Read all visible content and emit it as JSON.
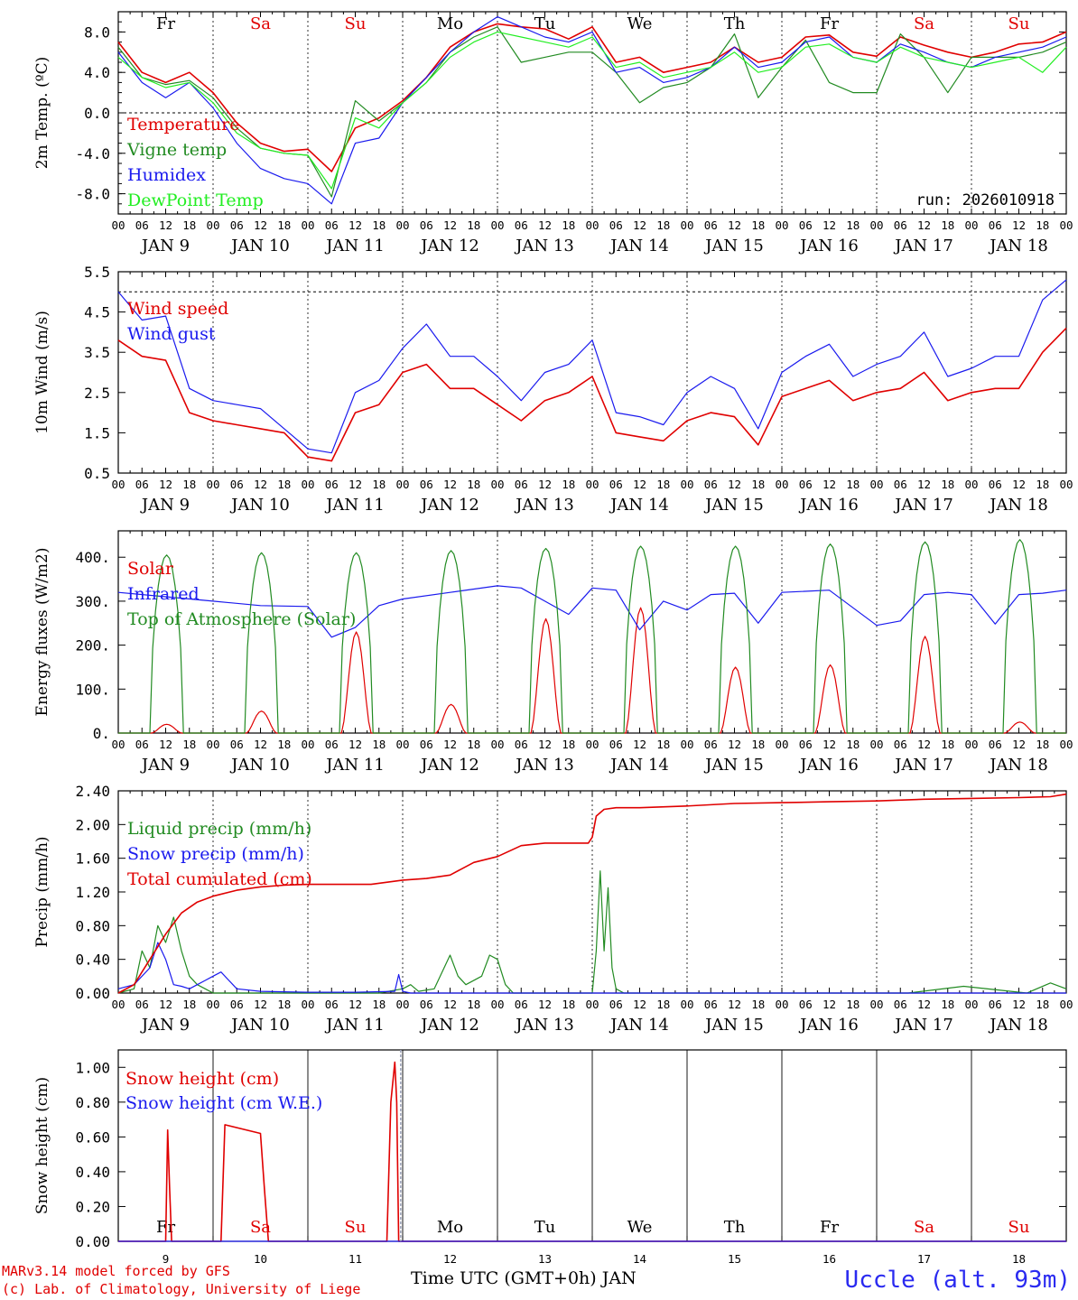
{
  "page": {
    "credit_line1": "MARv3.14 model forced by GFS",
    "credit_line2": "(c) Lab. of Climatology, University of Liege",
    "station": "Uccle (alt. 93m)",
    "xaxis_title": "Time UTC (GMT+0h) JAN",
    "run_label": "run: 2026010918"
  },
  "colors": {
    "red": "#e00000",
    "green": "#228b22",
    "blue": "#1a1aee",
    "lightgreen": "#22ee22",
    "weekday": "#000000",
    "weekend": "#e00000"
  },
  "days": {
    "weekday_letters": [
      "Fr",
      "Sa",
      "Su",
      "Mo",
      "Tu",
      "We",
      "Th",
      "Fr",
      "Sa",
      "Su"
    ],
    "weekend": [
      false,
      true,
      true,
      false,
      false,
      false,
      false,
      false,
      true,
      true
    ],
    "jan_labels": [
      "JAN  9",
      "JAN 10",
      "JAN 11",
      "JAN 12",
      "JAN 13",
      "JAN 14",
      "JAN 15",
      "JAN 16",
      "JAN 17",
      "JAN 18"
    ],
    "day_numbers": [
      "9",
      "10",
      "11",
      "12",
      "13",
      "14",
      "15",
      "16",
      "17",
      "18"
    ],
    "hour_ticks": [
      "00",
      "06",
      "12",
      "18"
    ],
    "final_tick": "00"
  },
  "chart_data": [
    {
      "type": "line",
      "id": "temp",
      "ylabel": "2m Temp. (ºC)",
      "ylim": [
        -10,
        10
      ],
      "ticks": [
        -8.0,
        -4.0,
        0.0,
        4.0,
        8.0
      ],
      "tick_labels": [
        "-8.0",
        "-4.0",
        "0.0",
        "4.0",
        "8.0"
      ],
      "x_unit": "hours since JAN 9 00 UTC",
      "x": [
        0,
        6,
        12,
        18,
        24,
        30,
        36,
        42,
        48,
        54,
        60,
        66,
        72,
        78,
        84,
        90,
        96,
        102,
        108,
        114,
        120,
        126,
        132,
        138,
        144,
        150,
        156,
        162,
        168,
        174,
        180,
        186,
        192,
        198,
        204,
        210,
        216,
        222,
        228,
        234,
        240
      ],
      "series": [
        {
          "name": "Temperature",
          "color": "red",
          "values": [
            7.0,
            4.0,
            3.0,
            4.0,
            2.0,
            -1.0,
            -3.0,
            -3.8,
            -3.6,
            -5.8,
            -1.5,
            -0.5,
            1.2,
            3.5,
            6.5,
            8.0,
            8.8,
            8.5,
            8.3,
            7.3,
            8.5,
            5.0,
            5.5,
            4.0,
            4.5,
            5.0,
            6.5,
            5.0,
            5.5,
            7.5,
            7.7,
            6.0,
            5.6,
            7.5,
            6.7,
            6.0,
            5.5,
            6.0,
            6.8,
            7.0,
            8.0
          ]
        },
        {
          "name": "Vigne temp",
          "color": "green",
          "values": [
            6.5,
            3.5,
            2.8,
            3.2,
            1.5,
            -1.5,
            -3.5,
            -4.0,
            -4.2,
            -8.3,
            1.2,
            -0.8,
            1.0,
            3.0,
            6.0,
            7.5,
            8.5,
            5.0,
            5.5,
            6.0,
            6.0,
            4.0,
            1.0,
            2.5,
            3.0,
            4.5,
            7.8,
            1.5,
            4.5,
            7.2,
            3.0,
            2.0,
            2.0,
            7.8,
            5.5,
            2.0,
            5.5,
            5.5,
            5.5,
            6.0,
            7.0
          ]
        },
        {
          "name": "Humidex",
          "color": "blue",
          "values": [
            6.0,
            3.0,
            1.5,
            3.0,
            0.5,
            -3.0,
            -5.5,
            -6.5,
            -7.0,
            -9.0,
            -3.0,
            -2.5,
            1.0,
            3.5,
            6.0,
            8.0,
            9.5,
            8.5,
            7.5,
            7.0,
            8.0,
            4.0,
            4.5,
            3.0,
            3.5,
            4.5,
            6.5,
            4.5,
            5.0,
            7.0,
            7.5,
            5.5,
            5.0,
            6.8,
            6.0,
            5.0,
            4.5,
            5.5,
            6.0,
            6.5,
            7.5
          ]
        },
        {
          "name": "DewPoint Temp",
          "color": "lightgreen",
          "values": [
            5.5,
            3.5,
            2.5,
            3.0,
            1.0,
            -2.0,
            -3.5,
            -4.0,
            -4.2,
            -7.5,
            -0.5,
            -1.5,
            1.0,
            3.0,
            5.5,
            7.0,
            8.0,
            7.5,
            7.0,
            6.5,
            7.5,
            4.5,
            5.0,
            3.5,
            4.0,
            4.5,
            6.0,
            4.0,
            4.5,
            6.5,
            6.8,
            5.5,
            5.0,
            6.5,
            5.5,
            5.0,
            4.5,
            5.0,
            5.5,
            4.0,
            6.5
          ]
        }
      ]
    },
    {
      "type": "line",
      "id": "wind",
      "ylabel": "10m Wind (m/s)",
      "ylim": [
        0.5,
        5.5
      ],
      "ticks": [
        0.5,
        1.5,
        2.5,
        3.5,
        4.5,
        5.5
      ],
      "tick_labels": [
        "0.5",
        "1.5",
        "2.5",
        "3.5",
        "4.5",
        "5.5"
      ],
      "x_unit": "hours since JAN 9 00 UTC",
      "x": [
        0,
        6,
        12,
        18,
        24,
        30,
        36,
        42,
        48,
        54,
        60,
        66,
        72,
        78,
        84,
        90,
        96,
        102,
        108,
        114,
        120,
        126,
        132,
        138,
        144,
        150,
        156,
        162,
        168,
        174,
        180,
        186,
        192,
        198,
        204,
        210,
        216,
        222,
        228,
        234,
        240
      ],
      "series": [
        {
          "name": "Wind speed",
          "color": "red",
          "values": [
            3.8,
            3.4,
            3.3,
            2.0,
            1.8,
            1.7,
            1.6,
            1.5,
            0.9,
            0.8,
            2.0,
            2.2,
            3.0,
            3.2,
            2.6,
            2.6,
            2.2,
            1.8,
            2.3,
            2.5,
            2.9,
            1.5,
            1.4,
            1.3,
            1.8,
            2.0,
            1.9,
            1.2,
            2.4,
            2.6,
            2.8,
            2.3,
            2.5,
            2.6,
            3.0,
            2.3,
            2.5,
            2.6,
            2.6,
            3.5,
            4.1
          ]
        },
        {
          "name": "Wind gust",
          "color": "blue",
          "values": [
            5.0,
            4.3,
            4.4,
            2.6,
            2.3,
            2.2,
            2.1,
            1.6,
            1.1,
            1.0,
            2.5,
            2.8,
            3.6,
            4.2,
            3.4,
            3.4,
            2.9,
            2.3,
            3.0,
            3.2,
            3.8,
            2.0,
            1.9,
            1.7,
            2.5,
            2.9,
            2.6,
            1.6,
            3.0,
            3.4,
            3.7,
            2.9,
            3.2,
            3.4,
            4.0,
            2.9,
            3.1,
            3.4,
            3.4,
            4.8,
            5.3
          ]
        }
      ]
    },
    {
      "type": "line",
      "id": "energy",
      "ylabel": "Energy fluxes (W/m2)",
      "ylim": [
        0,
        460
      ],
      "ticks": [
        0,
        100,
        200,
        300,
        400
      ],
      "tick_labels": [
        "0.",
        "100.",
        "200.",
        "300.",
        "400."
      ],
      "x_unit": "hours since JAN 9 00 UTC",
      "series": [
        {
          "name": "Solar",
          "color": "red",
          "peaks": [
            20,
            50,
            230,
            65,
            260,
            285,
            150,
            155,
            220,
            25
          ]
        },
        {
          "name": "Infrared",
          "color": "blue",
          "x": [
            0,
            12,
            24,
            36,
            48,
            54,
            60,
            66,
            72,
            84,
            96,
            102,
            108,
            114,
            120,
            126,
            132,
            138,
            144,
            150,
            156,
            162,
            168,
            180,
            192,
            198,
            204,
            210,
            216,
            222,
            228,
            234,
            240
          ],
          "values": [
            320,
            310,
            300,
            290,
            288,
            218,
            240,
            290,
            305,
            320,
            335,
            330,
            300,
            270,
            330,
            325,
            235,
            300,
            280,
            315,
            318,
            250,
            320,
            325,
            245,
            255,
            315,
            320,
            315,
            248,
            315,
            318,
            325
          ]
        },
        {
          "name": "Top of Atmosphere (Solar)",
          "color": "green",
          "peaks": [
            405,
            410,
            410,
            415,
            420,
            425,
            425,
            430,
            435,
            440
          ]
        }
      ]
    },
    {
      "type": "line",
      "id": "precip",
      "ylabel": "Precip (mm/h)",
      "ylim": [
        0,
        2.4
      ],
      "ticks": [
        0,
        0.4,
        0.8,
        1.2,
        1.6,
        2.0,
        2.4
      ],
      "tick_labels": [
        "0.00",
        "0.40",
        "0.80",
        "1.20",
        "1.60",
        "2.00",
        "2.40"
      ],
      "x_unit": "hours since JAN 9 00 UTC",
      "series": [
        {
          "name": "Liquid precip (mm/h)",
          "color": "green",
          "x": [
            0,
            4,
            6,
            8,
            10,
            12,
            14,
            16,
            18,
            20,
            22,
            24,
            30,
            48,
            66,
            72,
            74,
            76,
            80,
            84,
            86,
            88,
            92,
            94,
            96,
            98,
            100,
            104,
            118,
            120,
            121,
            122,
            123,
            124,
            125,
            126,
            128,
            160,
            180,
            200,
            214,
            230,
            236,
            240
          ],
          "values": [
            0,
            0.05,
            0.5,
            0.3,
            0.8,
            0.6,
            0.9,
            0.5,
            0.2,
            0.1,
            0.05,
            0,
            0,
            0,
            0,
            0.05,
            0.1,
            0.02,
            0.05,
            0.45,
            0.2,
            0.1,
            0.2,
            0.45,
            0.4,
            0.1,
            0.0,
            0,
            0,
            0,
            0.5,
            1.45,
            0.5,
            1.25,
            0.3,
            0.05,
            0,
            0,
            0,
            0,
            0.08,
            0,
            0.12,
            0.05
          ]
        },
        {
          "name": "Snow precip (mm/h)",
          "color": "blue",
          "x": [
            0,
            4,
            8,
            10,
            12,
            14,
            16,
            18,
            20,
            22,
            24,
            26,
            28,
            30,
            36,
            48,
            60,
            70,
            71,
            72,
            74,
            96,
            120,
            240
          ],
          "values": [
            0.05,
            0.1,
            0.3,
            0.6,
            0.4,
            0.1,
            0.08,
            0.05,
            0.1,
            0.15,
            0.2,
            0.25,
            0.15,
            0.05,
            0.02,
            0.01,
            0.01,
            0.02,
            0.22,
            0.02,
            0,
            0,
            0,
            0
          ]
        },
        {
          "name": "Total cumulated (cm)",
          "color": "red",
          "x": [
            0,
            4,
            8,
            12,
            16,
            20,
            24,
            30,
            36,
            42,
            48,
            56,
            64,
            72,
            78,
            84,
            90,
            96,
            102,
            108,
            114,
            119,
            120,
            121,
            123,
            126,
            132,
            144,
            156,
            168,
            180,
            192,
            204,
            216,
            228,
            236,
            240
          ],
          "values": [
            0,
            0.1,
            0.4,
            0.7,
            0.95,
            1.08,
            1.15,
            1.22,
            1.26,
            1.28,
            1.29,
            1.29,
            1.29,
            1.34,
            1.36,
            1.4,
            1.55,
            1.62,
            1.75,
            1.78,
            1.78,
            1.78,
            1.85,
            2.1,
            2.18,
            2.2,
            2.2,
            2.22,
            2.25,
            2.26,
            2.27,
            2.28,
            2.3,
            2.31,
            2.32,
            2.33,
            2.36
          ]
        }
      ]
    },
    {
      "type": "line",
      "id": "snow",
      "ylabel": "Snow height (cm)",
      "ylim": [
        0,
        1.1
      ],
      "ticks": [
        0,
        0.2,
        0.4,
        0.6,
        0.8,
        1.0
      ],
      "tick_labels": [
        "0.00",
        "0.20",
        "0.40",
        "0.60",
        "0.80",
        "1.00"
      ],
      "x_unit": "hours since JAN 9 00 UTC",
      "series": [
        {
          "name": "Snow height (cm)",
          "color": "red",
          "x": [
            0,
            12,
            12.5,
            13,
            13.5,
            26,
            27,
            36,
            37,
            38,
            68,
            69,
            70,
            70.5,
            71,
            72,
            240
          ],
          "values": [
            0,
            0,
            0.64,
            0.3,
            0,
            0,
            0.67,
            0.62,
            0.3,
            0,
            0,
            0.8,
            1.03,
            0.8,
            0,
            0,
            0
          ]
        },
        {
          "name": "Snow height (cm W.E.)",
          "color": "blue",
          "x": [
            0,
            240
          ],
          "values": [
            0,
            0
          ]
        }
      ]
    }
  ]
}
